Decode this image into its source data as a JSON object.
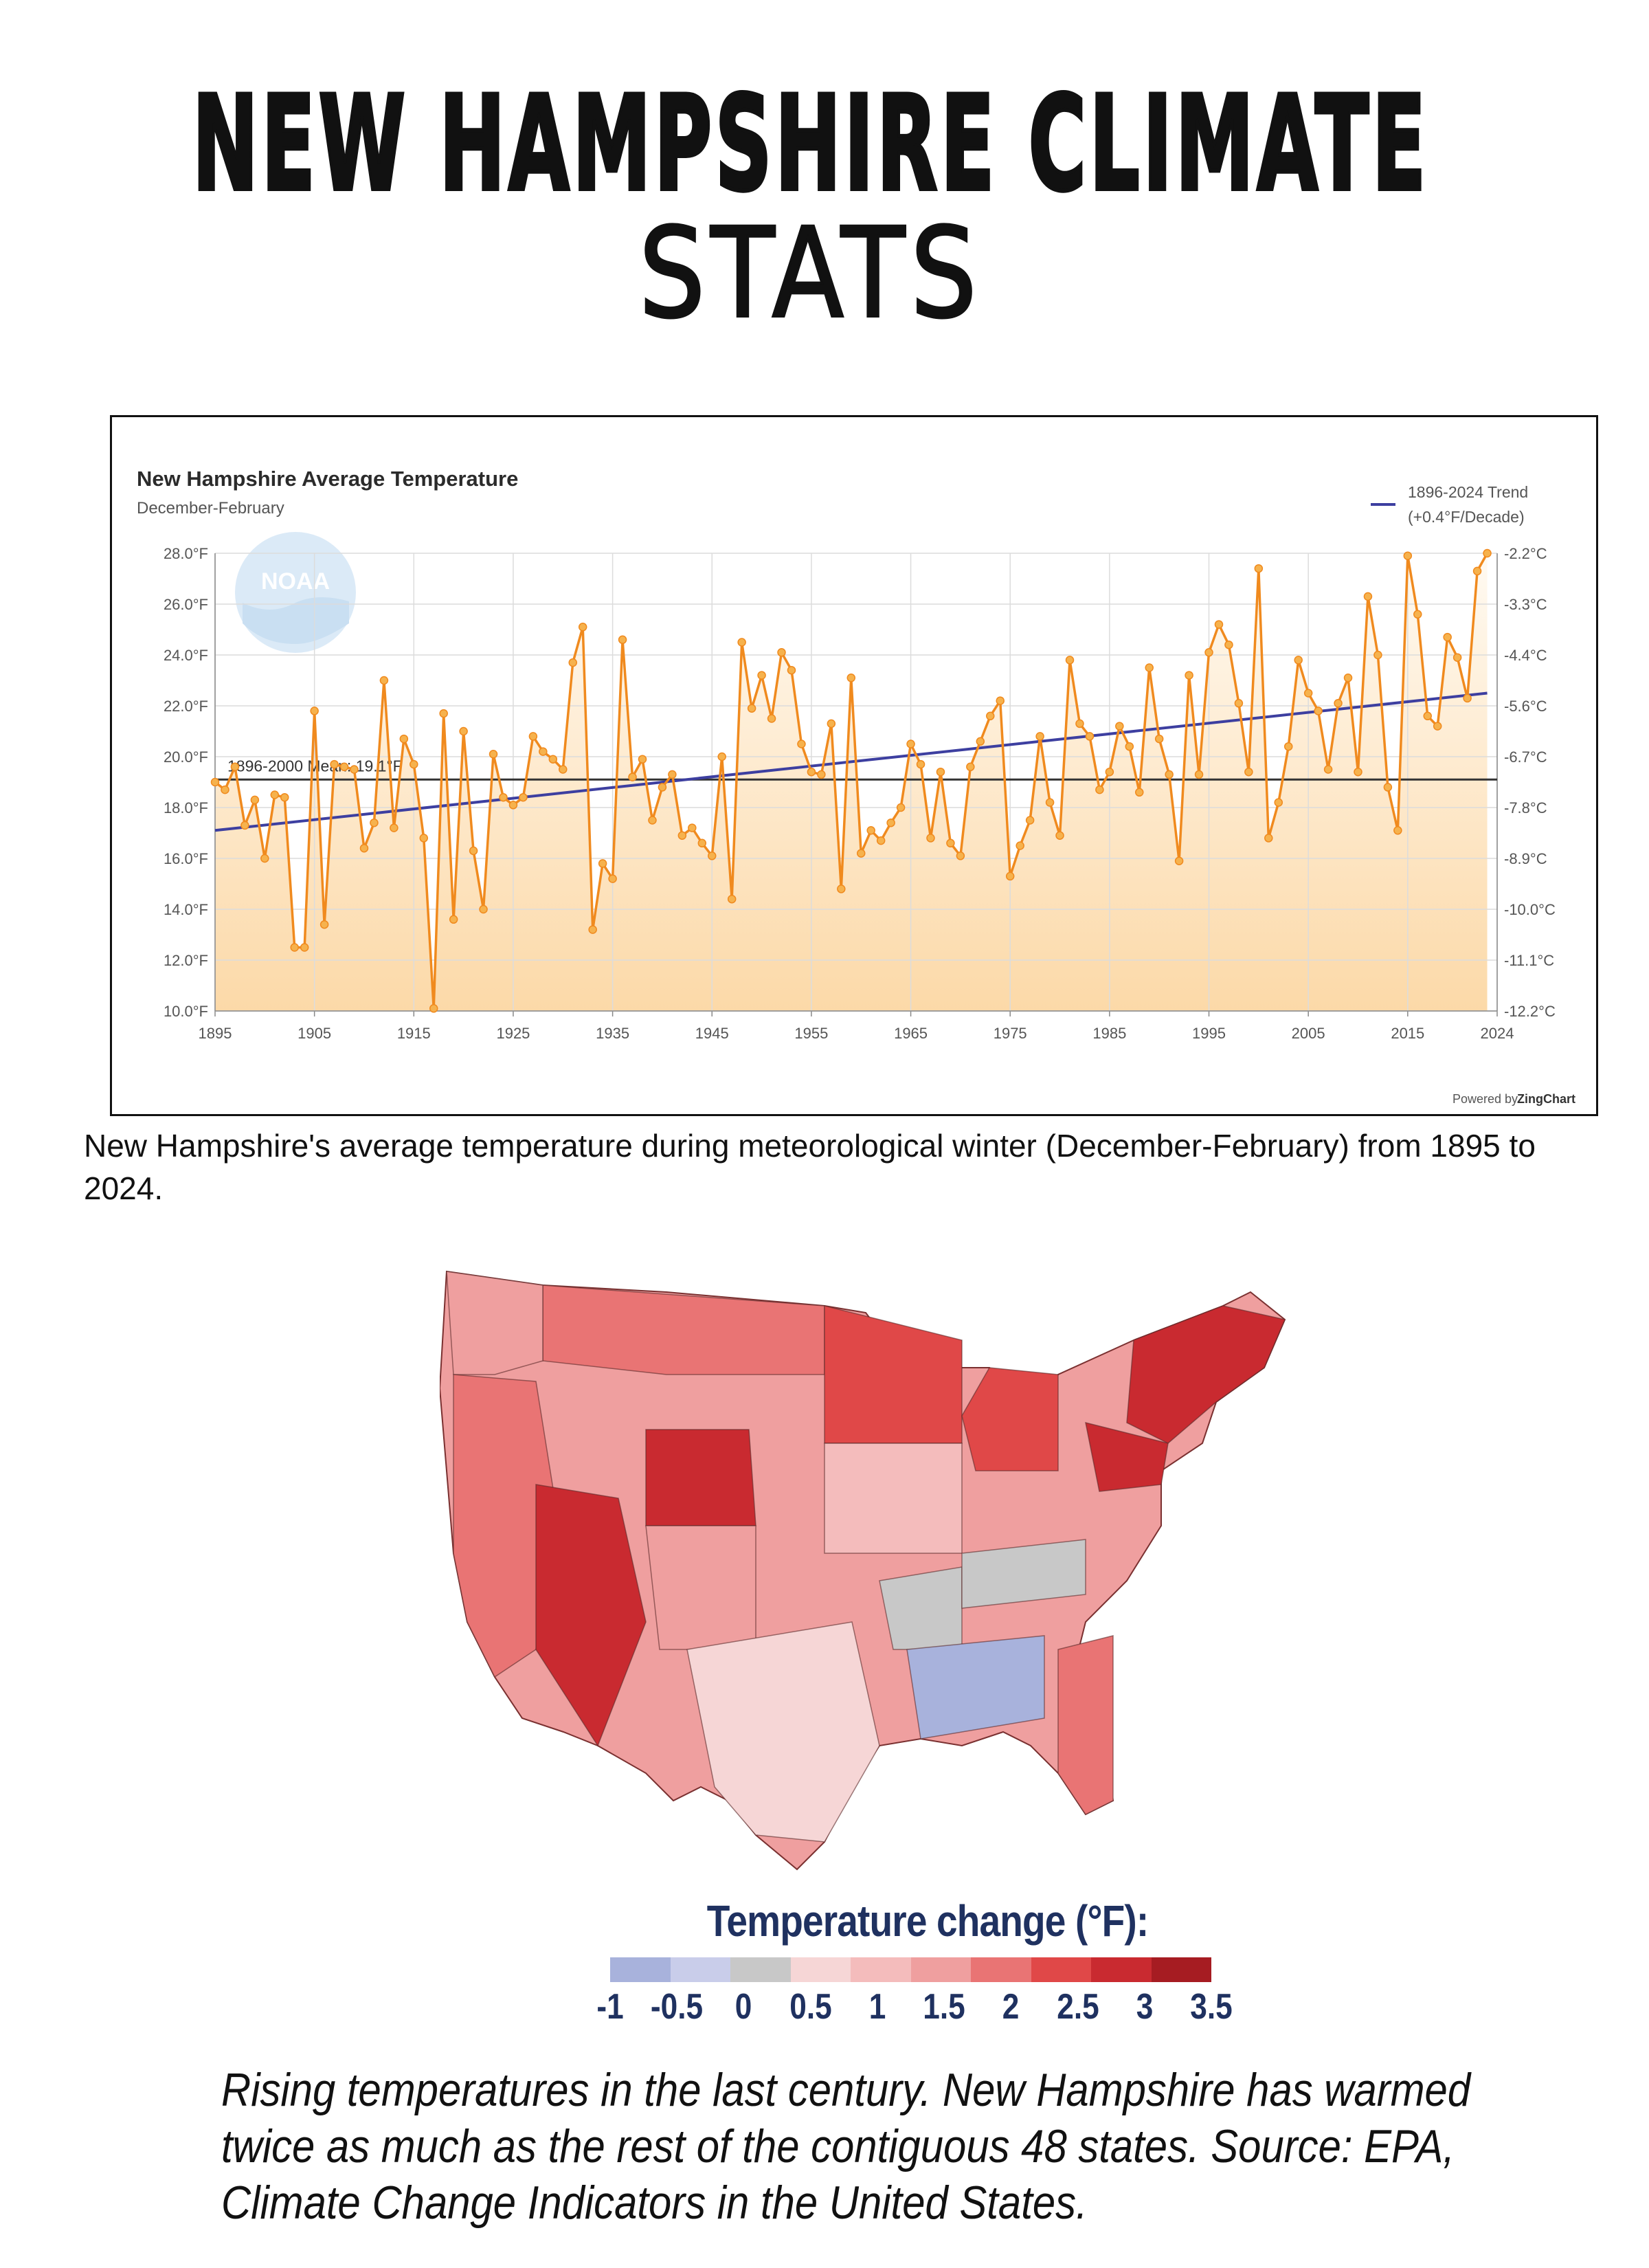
{
  "page": {
    "title_line1": "NEW HAMPSHIRE CLIMATE",
    "title_line2": "STATS"
  },
  "chart_data": {
    "type": "line",
    "title": "New Hampshire Average Temperature",
    "subtitle": "December-February",
    "logo_text": "NOAA",
    "trend_label_line1": "1896-2024 Trend",
    "trend_label_line2": "(+0.4°F/Decade)",
    "mean_label": "1896-2000 Mean: 19.1°F",
    "mean_value": 19.1,
    "trend_start": 17.1,
    "trend_end": 22.5,
    "powered_by": "Powered by",
    "powered_brand": "ZingChart",
    "xlim": [
      1895,
      2024
    ],
    "ylim": [
      10,
      28
    ],
    "x_ticks": [
      "1895",
      "1905",
      "1915",
      "1925",
      "1935",
      "1945",
      "1955",
      "1965",
      "1975",
      "1985",
      "1995",
      "2005",
      "2015",
      "2024"
    ],
    "y_ticks_f": [
      "10.0°F",
      "12.0°F",
      "14.0°F",
      "16.0°F",
      "18.0°F",
      "20.0°F",
      "22.0°F",
      "24.0°F",
      "26.0°F",
      "28.0°F"
    ],
    "y_ticks_c": [
      "-12.2°C",
      "-11.1°C",
      "-10.0°C",
      "-8.9°C",
      "-7.8°C",
      "-6.7°C",
      "-5.6°C",
      "-4.4°C",
      "-3.3°C",
      "-2.2°C"
    ],
    "start_year": 1895,
    "values": [
      19.0,
      18.7,
      19.6,
      17.3,
      18.3,
      16.0,
      18.5,
      18.4,
      12.5,
      12.5,
      21.8,
      13.4,
      19.7,
      19.6,
      19.5,
      16.4,
      17.4,
      23.0,
      17.2,
      20.7,
      19.7,
      16.8,
      10.1,
      21.7,
      13.6,
      21.0,
      16.3,
      14.0,
      20.1,
      18.4,
      18.1,
      18.4,
      20.8,
      20.2,
      19.9,
      19.5,
      23.7,
      25.1,
      13.2,
      15.8,
      15.2,
      24.6,
      19.2,
      19.9,
      17.5,
      18.8,
      19.3,
      16.9,
      17.2,
      16.6,
      16.1,
      20.0,
      14.4,
      24.5,
      21.9,
      23.2,
      21.5,
      24.1,
      23.4,
      20.5,
      19.4,
      19.3,
      21.3,
      14.8,
      23.1,
      16.2,
      17.1,
      16.7,
      17.4,
      18.0,
      20.5,
      19.7,
      16.8,
      19.4,
      16.6,
      16.1,
      19.6,
      20.6,
      21.6,
      22.2,
      15.3,
      16.5,
      17.5,
      20.8,
      18.2,
      16.9,
      23.8,
      21.3,
      20.8,
      18.7,
      19.4,
      21.2,
      20.4,
      18.6,
      23.5,
      20.7,
      19.3,
      15.9,
      23.2,
      19.3,
      24.1,
      25.2,
      24.4,
      22.1,
      19.4,
      27.4,
      16.8,
      18.2,
      20.4,
      23.8,
      22.5,
      21.8,
      19.5,
      22.1,
      23.1,
      19.4,
      26.3,
      24.0,
      18.8,
      17.1,
      27.9,
      25.6,
      21.6,
      21.2,
      24.7,
      23.9,
      22.3,
      27.3,
      28.0
    ]
  },
  "chart_caption": "New Hampshire's average temperature during meteorological winter (December-February) from 1895 to 2024.",
  "map": {
    "legend_title": "Temperature change (°F):",
    "legend_colors": [
      "#a8b2dc",
      "#c9cdea",
      "#c8c8c8",
      "#f6d6d6",
      "#f4bcbc",
      "#ef9f9f",
      "#e97474",
      "#e04848",
      "#c92a30",
      "#a61c22"
    ],
    "legend_labels": [
      "-1",
      "-0.5",
      "0",
      "0.5",
      "1",
      "1.5",
      "2",
      "2.5",
      "3",
      "3.5"
    ],
    "caption": "Rising temperatures in the last century. New Hampshire has warmed twice as much as the rest of the contiguous 48 states. Source: EPA, Climate Change Indicators in the United States."
  }
}
